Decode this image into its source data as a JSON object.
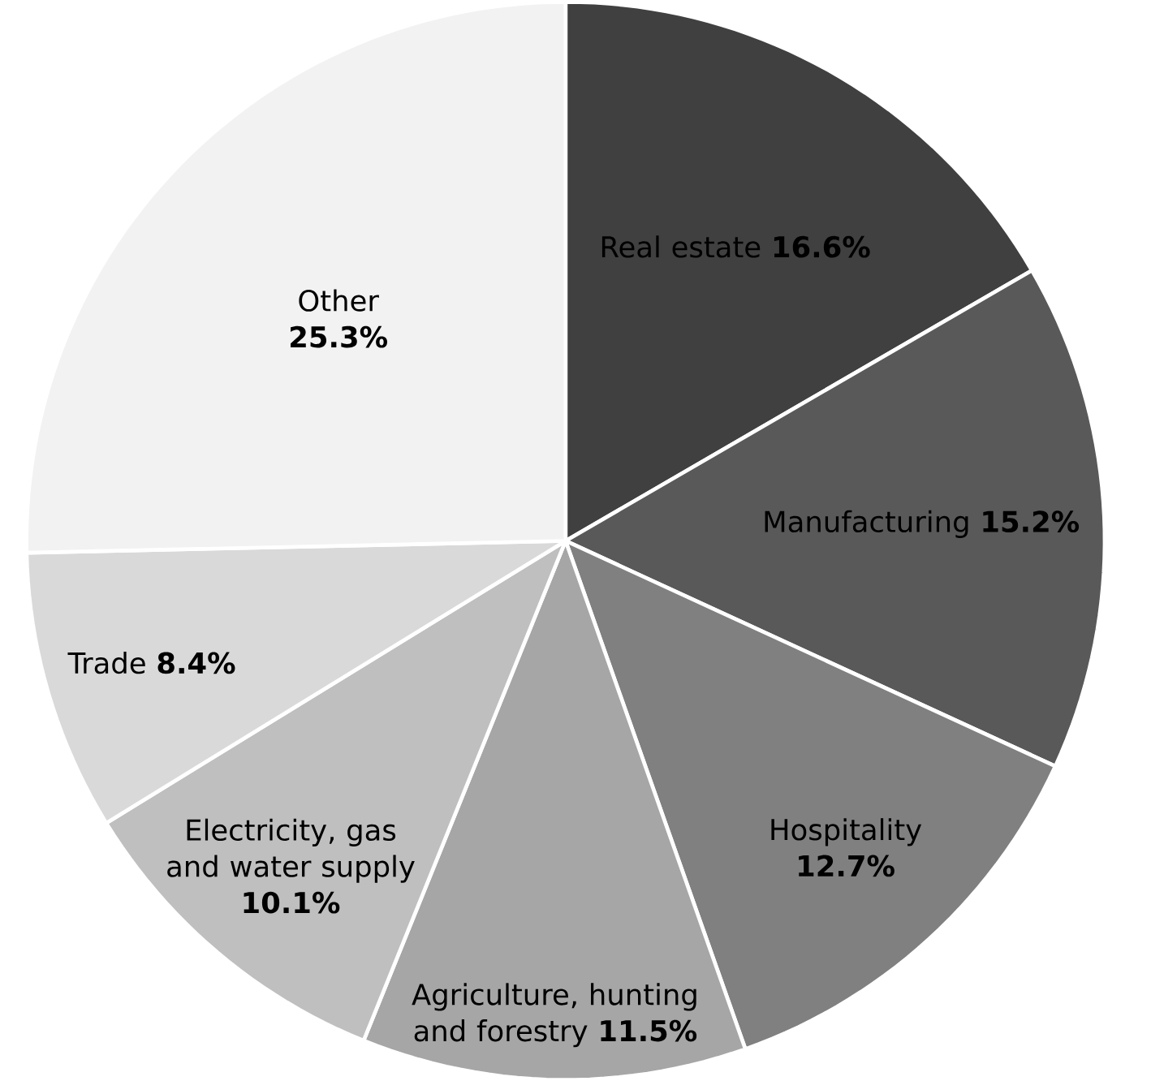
{
  "chart_data": {
    "type": "pie",
    "categories": [
      "Real estate",
      "Manufacturing",
      "Hospitality",
      "Agriculture, hunting and forestry",
      "Electricity, gas and water supply",
      "Trade",
      "Other"
    ],
    "values": [
      16.6,
      15.2,
      12.7,
      11.5,
      10.1,
      8.4,
      25.3
    ],
    "value_labels": [
      "16.6%",
      "15.2%",
      "12.7%",
      "11.5%",
      "10.1%",
      "8.4%",
      "25.3%"
    ],
    "colors": [
      "#404040",
      "#595959",
      "#808080",
      "#a6a6a6",
      "#bfbfbf",
      "#d9d9d9",
      "#f2f2f2"
    ]
  }
}
